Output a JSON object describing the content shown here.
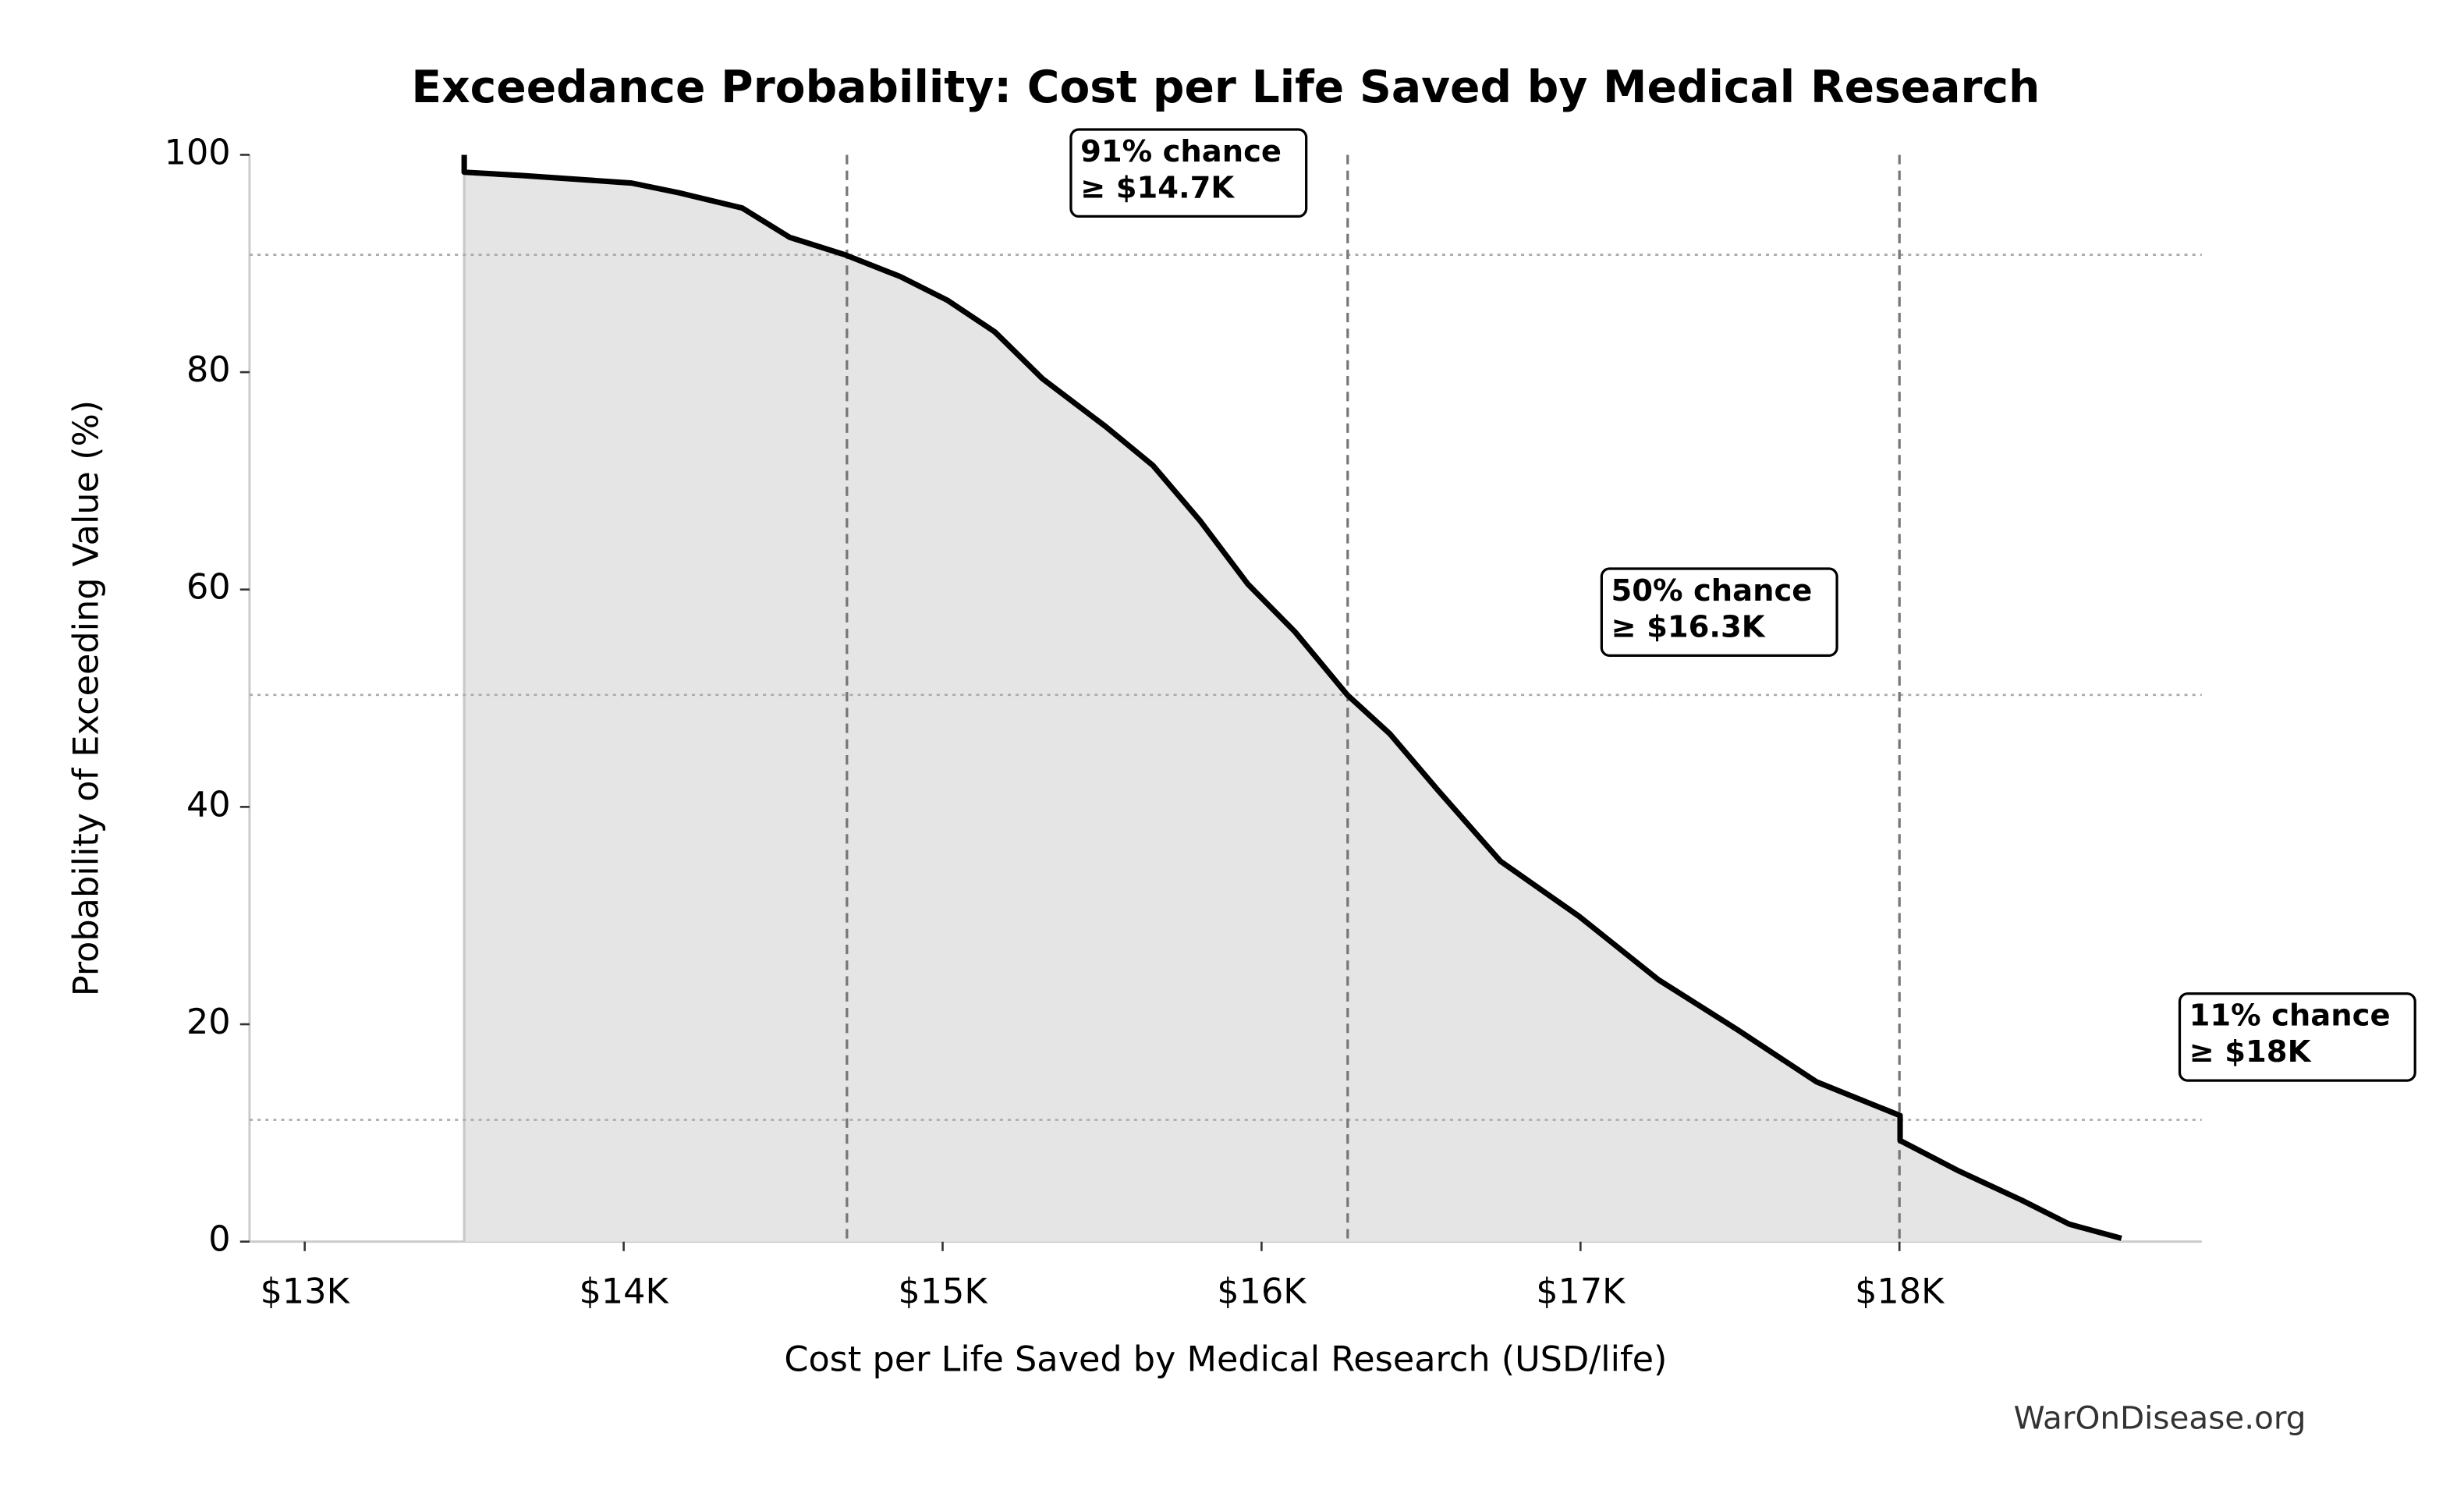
{
  "chart_data": {
    "type": "line",
    "title": "Exceedance Probability: Cost per Life Saved by Medical Research",
    "x_label": "Cost per Life Saved by Medical Research (USD/life)",
    "y_label": "Probability of Exceeding Value (%)",
    "watermark": "WarOnDisease.org",
    "x": [
      13500,
      13500,
      13679,
      14025,
      14174,
      14372,
      14521,
      14694,
      14867,
      15016,
      15164,
      15313,
      15511,
      15660,
      15808,
      15957,
      16105,
      16269,
      16403,
      16551,
      16749,
      16997,
      17244,
      17492,
      17740,
      18002,
      18002,
      18186,
      18384,
      18533,
      18696
    ],
    "values": [
      100,
      98.4,
      98.1,
      97.4,
      96.5,
      95.1,
      92.4,
      90.8,
      88.8,
      86.6,
      83.7,
      79.4,
      75.0,
      71.4,
      66.3,
      60.5,
      56.1,
      50.3,
      46.7,
      41.6,
      35.0,
      29.9,
      24.1,
      19.5,
      14.7,
      11.6,
      9.3,
      6.5,
      3.8,
      1.6,
      0.3
    ],
    "color": "#000000",
    "fill_color": "#e5e5e5",
    "xlim": [
      12827,
      18948
    ],
    "ylim": [
      0,
      100
    ],
    "xticks": [
      {
        "value": 13000,
        "label": "$13K"
      },
      {
        "value": 14000,
        "label": "$14K"
      },
      {
        "value": 15000,
        "label": "$15K"
      },
      {
        "value": 16000,
        "label": "$16K"
      },
      {
        "value": 17000,
        "label": "$17K"
      },
      {
        "value": 18000,
        "label": "$18K"
      }
    ],
    "yticks": [
      0,
      20,
      40,
      60,
      80,
      100
    ],
    "vlines": [
      14700,
      16270,
      18000
    ],
    "hlines": [
      90.8,
      50.3,
      11.2
    ],
    "annotations": [
      {
        "lines": [
          "91% chance",
          "≥ $14.7K"
        ]
      },
      {
        "lines": [
          "50% chance",
          "≥ $16.3K"
        ]
      },
      {
        "lines": [
          "11% chance",
          "≥ $18K"
        ]
      }
    ]
  }
}
